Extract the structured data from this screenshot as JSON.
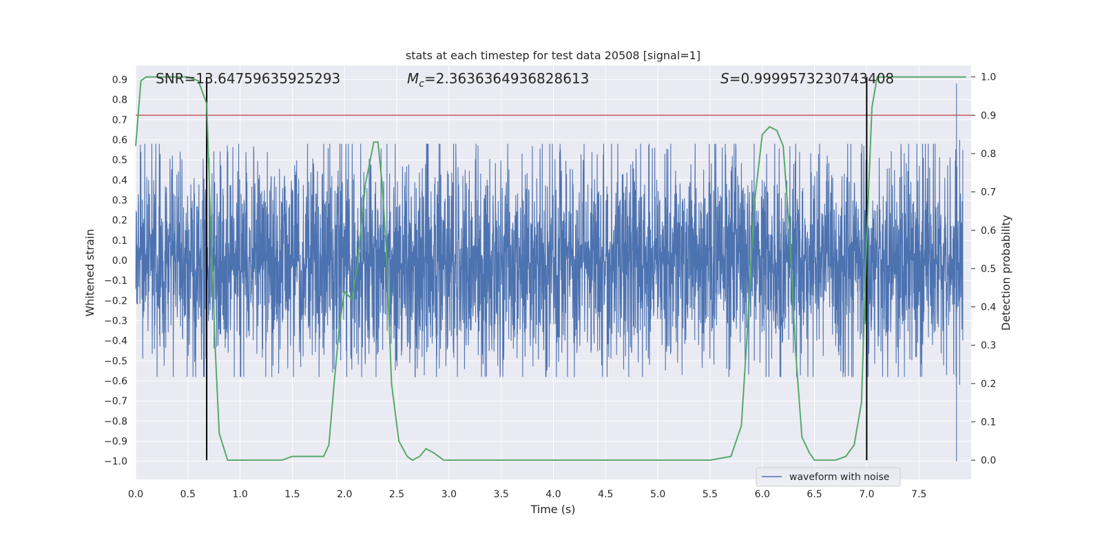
{
  "chart_data": {
    "type": "line",
    "title": "stats at each timestep for test data 20508 [signal=1]",
    "xlabel": "Time (s)",
    "ylabel": "Whitened strain",
    "y2label": "Detection probability",
    "xlim": [
      0,
      8
    ],
    "ylim": [
      -1.09,
      0.97
    ],
    "y2lim": [
      -0.05,
      1.03
    ],
    "x_ticks": [
      0.0,
      0.5,
      1.0,
      1.5,
      2.0,
      2.5,
      3.0,
      3.5,
      4.0,
      4.5,
      5.0,
      5.5,
      6.0,
      6.5,
      7.0,
      7.5
    ],
    "x_tick_labels": [
      "0.0",
      "0.5",
      "1.0",
      "1.5",
      "2.0",
      "2.5",
      "3.0",
      "3.5",
      "4.0",
      "4.5",
      "5.0",
      "5.5",
      "6.0",
      "6.5",
      "7.0",
      "7.5"
    ],
    "y_ticks": [
      0.9,
      0.8,
      0.7,
      0.6,
      0.5,
      0.4,
      0.3,
      0.2,
      0.1,
      0.0,
      -0.1,
      -0.2,
      -0.3,
      -0.4,
      -0.5,
      -0.6,
      -0.7,
      -0.8,
      -0.9,
      -1.0
    ],
    "y_tick_labels": [
      "0.9",
      "0.8",
      "0.7",
      "0.6",
      "0.5",
      "0.4",
      "0.3",
      "0.2",
      "0.1",
      "0.0",
      "−0.1",
      "−0.2",
      "−0.3",
      "−0.4",
      "−0.5",
      "−0.6",
      "−0.7",
      "−0.8",
      "−0.9",
      "−1.0"
    ],
    "y2_ticks": [
      1.0,
      0.9,
      0.8,
      0.7,
      0.6,
      0.5,
      0.4,
      0.3,
      0.2,
      0.1,
      0.0
    ],
    "y2_tick_labels": [
      "1.0",
      "0.9",
      "0.8",
      "0.7",
      "0.6",
      "0.5",
      "0.4",
      "0.3",
      "0.2",
      "0.1",
      "0.0"
    ],
    "annotations": {
      "snr": "SNR=13.64759635925293",
      "mc_symbol": "M",
      "mc_sub": "c",
      "mc_value": "=2.3636364936828613",
      "s_symbol": "S",
      "s_value": "=0.9999573230743408"
    },
    "legend": {
      "label": "waveform with noise",
      "placement": "lower-right"
    },
    "threshold": {
      "value": 0.9,
      "axis": "y2",
      "color": "#c44e52"
    },
    "event_markers": [
      0.68,
      7.0
    ],
    "waveform": {
      "name": "waveform with noise",
      "color": "#4c72b0",
      "n_samples": 4096,
      "seed": 20508,
      "core_sigma": 0.085,
      "spike_scale": 0.22,
      "spike_max": 0.58,
      "late_spikes": [
        {
          "x": 7.86,
          "low": -1.0,
          "high": 0.88
        },
        {
          "x": 7.89,
          "low": -0.62,
          "high": 0.6
        },
        {
          "x": 7.92,
          "low": -0.4,
          "high": 0.55
        }
      ]
    },
    "probability": {
      "name": "Detection probability",
      "color": "#55a868",
      "x": [
        0.0,
        0.05,
        0.1,
        0.2,
        0.3,
        0.4,
        0.5,
        0.6,
        0.68,
        0.72,
        0.76,
        0.8,
        0.88,
        0.95,
        1.0,
        1.2,
        1.4,
        1.5,
        1.6,
        1.7,
        1.8,
        1.85,
        1.9,
        1.95,
        2.0,
        2.07,
        2.12,
        2.2,
        2.28,
        2.32,
        2.36,
        2.4,
        2.45,
        2.52,
        2.6,
        2.65,
        2.72,
        2.78,
        2.85,
        2.9,
        2.95,
        3.0,
        3.2,
        3.5,
        4.0,
        4.5,
        5.0,
        5.5,
        5.7,
        5.8,
        5.86,
        5.92,
        6.0,
        6.07,
        6.14,
        6.2,
        6.26,
        6.32,
        6.38,
        6.45,
        6.5,
        6.6,
        6.7,
        6.8,
        6.88,
        6.95,
        7.0,
        7.05,
        7.1,
        7.18,
        7.25,
        7.5,
        7.75,
        7.95
      ],
      "values": [
        0.82,
        0.99,
        1.0,
        1.0,
        1.0,
        1.0,
        1.0,
        0.99,
        0.93,
        0.6,
        0.3,
        0.07,
        0.0,
        0.0,
        0.0,
        0.0,
        0.0,
        0.01,
        0.01,
        0.01,
        0.01,
        0.04,
        0.2,
        0.35,
        0.44,
        0.42,
        0.5,
        0.72,
        0.83,
        0.83,
        0.72,
        0.55,
        0.2,
        0.05,
        0.01,
        0.0,
        0.01,
        0.03,
        0.02,
        0.01,
        0.0,
        0.0,
        0.0,
        0.0,
        0.0,
        0.0,
        0.0,
        0.0,
        0.01,
        0.09,
        0.35,
        0.66,
        0.85,
        0.87,
        0.86,
        0.82,
        0.6,
        0.28,
        0.06,
        0.02,
        0.0,
        0.0,
        0.0,
        0.01,
        0.04,
        0.15,
        0.58,
        0.92,
        1.0,
        1.0,
        1.0,
        1.0,
        1.0,
        1.0
      ]
    }
  }
}
